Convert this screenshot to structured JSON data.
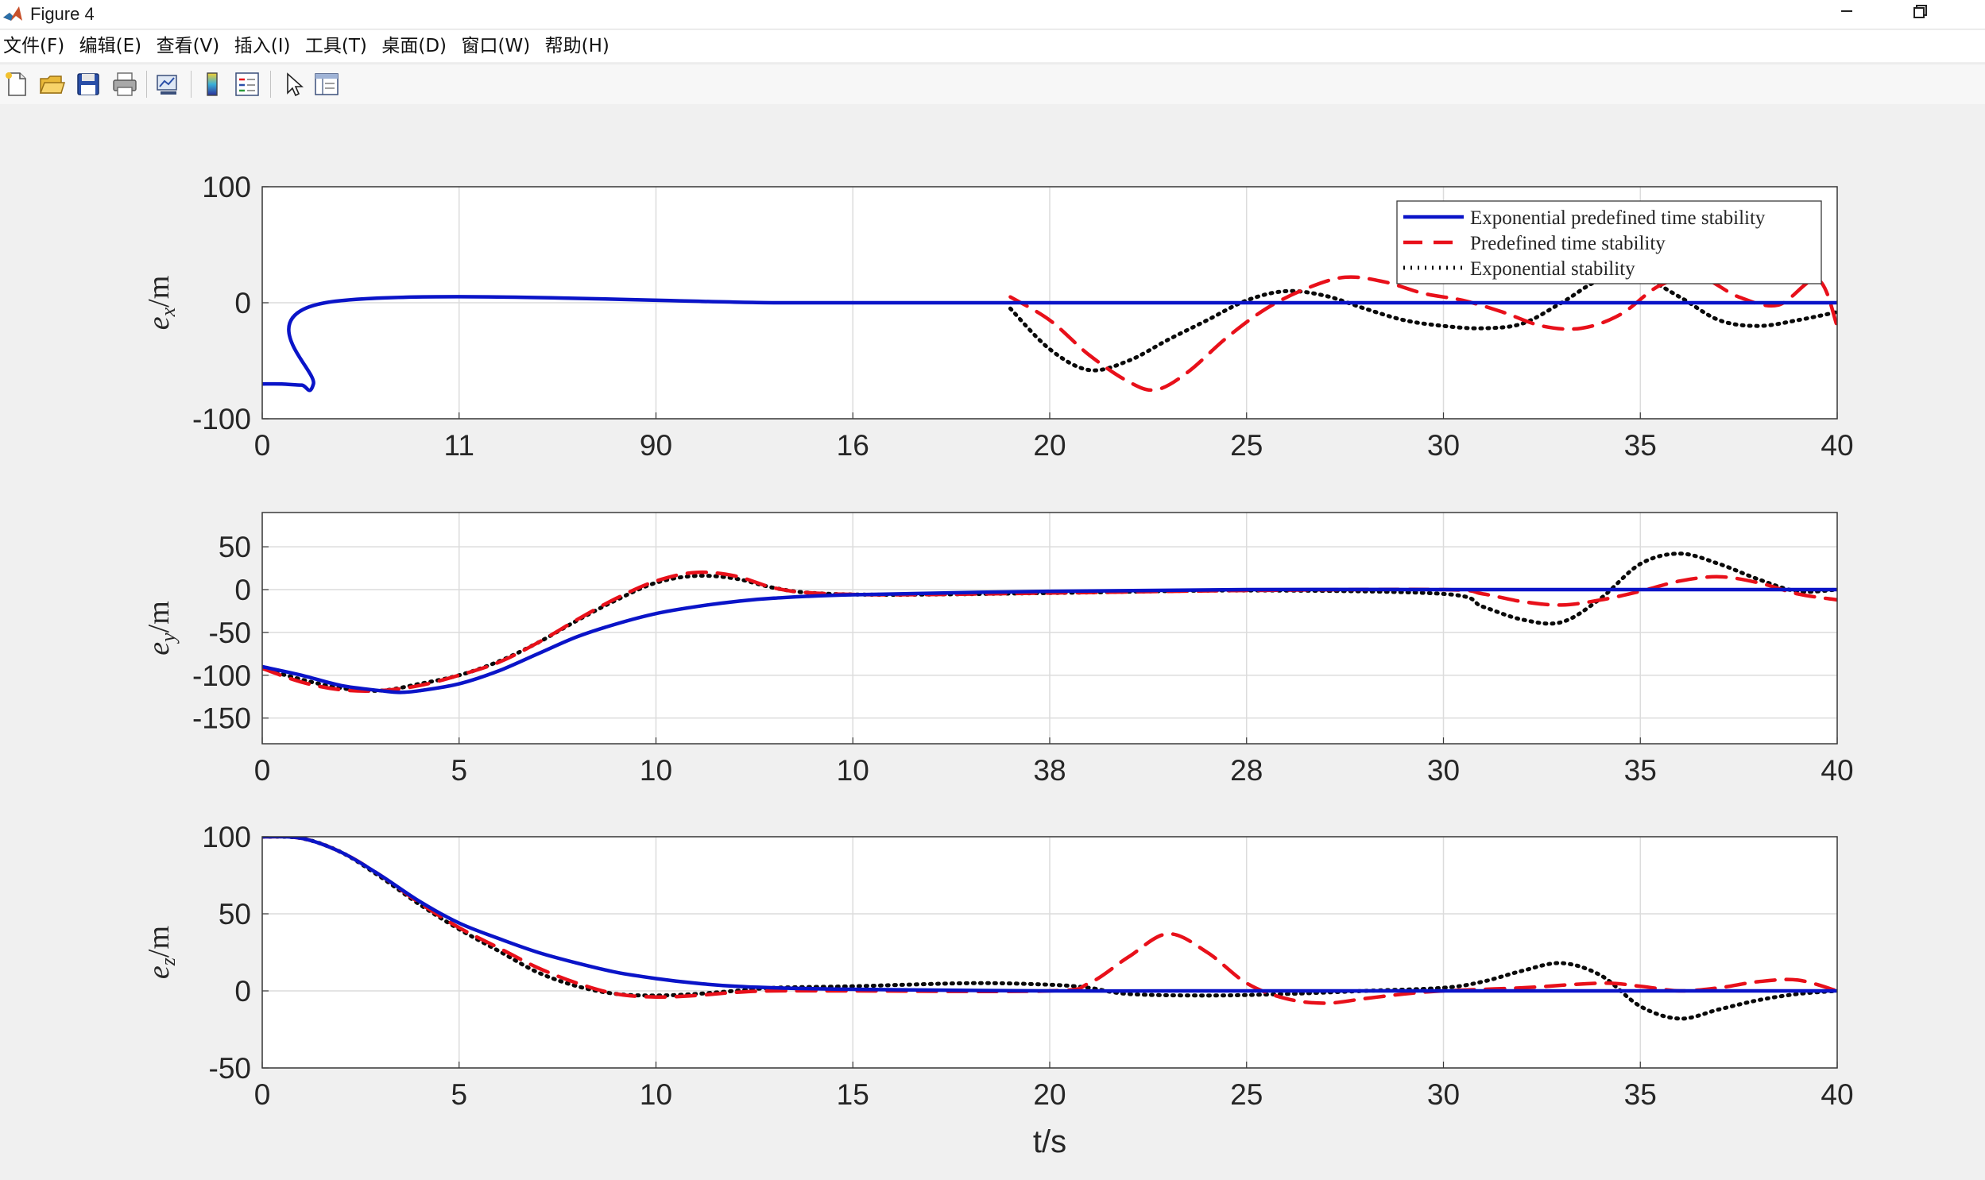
{
  "window": {
    "title": "Figure 4",
    "min_icon": "minimize-icon",
    "max_icon": "restore-icon"
  },
  "menu": {
    "items": [
      "文件(F)",
      "编辑(E)",
      "查看(V)",
      "插入(I)",
      "工具(T)",
      "桌面(D)",
      "窗口(W)",
      "帮助(H)"
    ]
  },
  "toolbar": {
    "buttons": [
      "new-figure-icon",
      "open-file-icon",
      "save-icon",
      "print-icon",
      "link-plot-icon",
      "colorbar-icon",
      "legend-icon",
      "edit-plot-arrow-icon",
      "property-inspector-icon"
    ]
  },
  "colors": {
    "exp_predefined": "#0a14c8",
    "predefined": "#e8101a",
    "exponential": "#0a0a0a",
    "grid": "#dcdcdc"
  },
  "chart_data": [
    {
      "type": "line",
      "ylabel_base": "e",
      "ylabel_sub": "x",
      "ylabel_unit": "/m",
      "xlim": [
        0,
        40
      ],
      "ylim": [
        -100,
        100
      ],
      "yticks": [
        100,
        0,
        -100
      ],
      "ytick_labels": [
        "100",
        "0",
        "-100"
      ],
      "xtick_labels": [
        "0",
        "11",
        "90",
        "16",
        "20",
        "25",
        "30",
        "35",
        "40"
      ],
      "grid": true,
      "legend": {
        "placement": "top-right",
        "entries": [
          "Exponential predefined time stability",
          "Predefined time stability",
          "Exponential stability"
        ]
      },
      "series": [
        {
          "name": "Exponential predefined time stability",
          "style": "solid",
          "x": [
            0,
            0.5,
            1,
            1.3,
            1.6,
            13,
            14,
            15,
            16,
            17,
            18,
            19,
            20,
            25,
            30,
            35,
            40
          ],
          "y": [
            -70,
            -70,
            -71,
            -70,
            0,
            0,
            0,
            0,
            0,
            0,
            0,
            0,
            0,
            0,
            0,
            0,
            0
          ]
        },
        {
          "name": "Predefined time stability",
          "style": "dashed",
          "x": [
            19,
            20,
            21,
            22,
            22.7,
            23.5,
            24.5,
            25.5,
            26.5,
            27.5,
            28.5,
            29.5,
            30.5,
            31.5,
            32.5,
            33.5,
            34.5,
            35.5,
            36.5,
            37.5,
            38.5,
            39.5,
            40
          ],
          "y": [
            5,
            -15,
            -45,
            -68,
            -75,
            -60,
            -30,
            -5,
            12,
            22,
            18,
            8,
            2,
            -8,
            -20,
            -22,
            -10,
            15,
            22,
            5,
            -2,
            20,
            -20
          ]
        },
        {
          "name": "Exponential stability",
          "style": "dotted",
          "x": [
            19,
            20,
            21,
            22,
            23,
            24,
            25,
            26,
            27,
            28,
            29,
            30,
            31,
            32,
            33,
            34,
            35,
            36,
            37,
            38,
            39,
            40
          ],
          "y": [
            -5,
            -40,
            -58,
            -50,
            -32,
            -15,
            2,
            10,
            6,
            -5,
            -15,
            -20,
            -22,
            -18,
            0,
            20,
            22,
            5,
            -15,
            -20,
            -15,
            -8
          ]
        }
      ]
    },
    {
      "type": "line",
      "ylabel_base": "e",
      "ylabel_sub": "y",
      "ylabel_unit": "/m",
      "xlim": [
        0,
        40
      ],
      "ylim": [
        -180,
        90
      ],
      "yticks": [
        50,
        0,
        -50,
        -100,
        -150
      ],
      "ytick_labels": [
        "50",
        "0",
        "-50",
        "-100",
        "-150"
      ],
      "xtick_labels": [
        "0",
        "5",
        "10",
        "10",
        "38",
        "28",
        "30",
        "35",
        "40"
      ],
      "grid": true,
      "series": [
        {
          "name": "Exponential predefined time stability",
          "style": "solid",
          "x": [
            0,
            1,
            2,
            3,
            3.5,
            4,
            5,
            6,
            7,
            8,
            9,
            10,
            11,
            12,
            13,
            15,
            20,
            25,
            30,
            35,
            40
          ],
          "y": [
            -90,
            -100,
            -112,
            -118,
            -120,
            -118,
            -110,
            -95,
            -75,
            -55,
            -40,
            -28,
            -20,
            -14,
            -10,
            -6,
            -2,
            0,
            0,
            0,
            0
          ]
        },
        {
          "name": "Predefined time stability",
          "style": "dashed",
          "x": [
            0,
            1,
            2,
            3,
            4,
            5,
            6,
            7,
            8,
            9,
            10,
            11,
            12,
            13,
            14,
            16,
            20,
            25,
            30,
            31,
            32,
            33,
            34,
            35,
            36,
            37,
            38,
            39,
            40
          ],
          "y": [
            -92,
            -108,
            -117,
            -118,
            -112,
            -100,
            -85,
            -62,
            -35,
            -10,
            10,
            20,
            16,
            2,
            -4,
            -6,
            -4,
            -1,
            0,
            -5,
            -14,
            -18,
            -12,
            -2,
            10,
            15,
            8,
            -5,
            -12
          ]
        },
        {
          "name": "Exponential stability",
          "style": "dotted",
          "x": [
            0,
            1,
            2,
            3,
            4,
            5,
            6,
            7,
            8,
            9,
            10,
            11,
            12,
            13,
            14,
            16,
            20,
            25,
            30,
            31,
            32,
            33,
            34,
            35,
            36,
            37,
            38,
            39,
            40
          ],
          "y": [
            -92,
            -105,
            -115,
            -118,
            -110,
            -100,
            -84,
            -62,
            -36,
            -12,
            8,
            16,
            13,
            2,
            -4,
            -6,
            -4,
            -1,
            -5,
            -20,
            -35,
            -38,
            -10,
            30,
            42,
            30,
            12,
            -2,
            0
          ]
        }
      ]
    },
    {
      "type": "line",
      "ylabel_base": "e",
      "ylabel_sub": "z",
      "ylabel_unit": "/m",
      "xlabel": "t/s",
      "xlim": [
        0,
        40
      ],
      "ylim": [
        -50,
        100
      ],
      "yticks": [
        100,
        50,
        0,
        -50
      ],
      "ytick_labels": [
        "100",
        "50",
        "0",
        "-50"
      ],
      "xtick_labels": [
        "0",
        "5",
        "10",
        "15",
        "20",
        "25",
        "30",
        "35",
        "40"
      ],
      "grid": true,
      "series": [
        {
          "name": "Exponential predefined time stability",
          "style": "solid",
          "x": [
            0,
            1,
            2,
            3,
            4,
            5,
            6,
            7,
            8,
            9,
            10,
            11,
            12,
            13,
            15,
            20,
            25,
            30,
            35,
            40
          ],
          "y": [
            100,
            99,
            90,
            75,
            58,
            44,
            34,
            25,
            18,
            12,
            8,
            5,
            3,
            2,
            1,
            0,
            0,
            0,
            0,
            0
          ]
        },
        {
          "name": "Predefined time stability",
          "style": "dashed",
          "x": [
            0,
            1,
            2,
            3,
            4,
            5,
            6,
            7,
            8,
            9,
            10,
            11,
            12,
            13,
            15,
            20,
            21,
            22,
            23,
            24,
            25,
            26,
            27,
            28,
            29,
            30,
            32,
            34,
            35,
            36,
            37,
            38,
            39,
            40
          ],
          "y": [
            100,
            99,
            90,
            75,
            57,
            41,
            28,
            15,
            5,
            -2,
            -4,
            -3,
            -1,
            0,
            0,
            0,
            5,
            22,
            37,
            25,
            5,
            -5,
            -8,
            -5,
            -2,
            0,
            2,
            5,
            3,
            0,
            2,
            6,
            7,
            0
          ]
        },
        {
          "name": "Exponential stability",
          "style": "dotted",
          "x": [
            0,
            1,
            2,
            3,
            4,
            5,
            6,
            7,
            8,
            9,
            10,
            11,
            12,
            13,
            15,
            18,
            20,
            21,
            22,
            24,
            26,
            28,
            30,
            31,
            32,
            33,
            34,
            35,
            36,
            37,
            38,
            39,
            40
          ],
          "y": [
            100,
            99,
            90,
            74,
            56,
            40,
            26,
            12,
            3,
            -2,
            -3,
            -2,
            0,
            2,
            3,
            5,
            4,
            2,
            -2,
            -3,
            -2,
            0,
            2,
            6,
            13,
            18,
            10,
            -10,
            -18,
            -12,
            -6,
            -2,
            0
          ]
        }
      ]
    }
  ]
}
